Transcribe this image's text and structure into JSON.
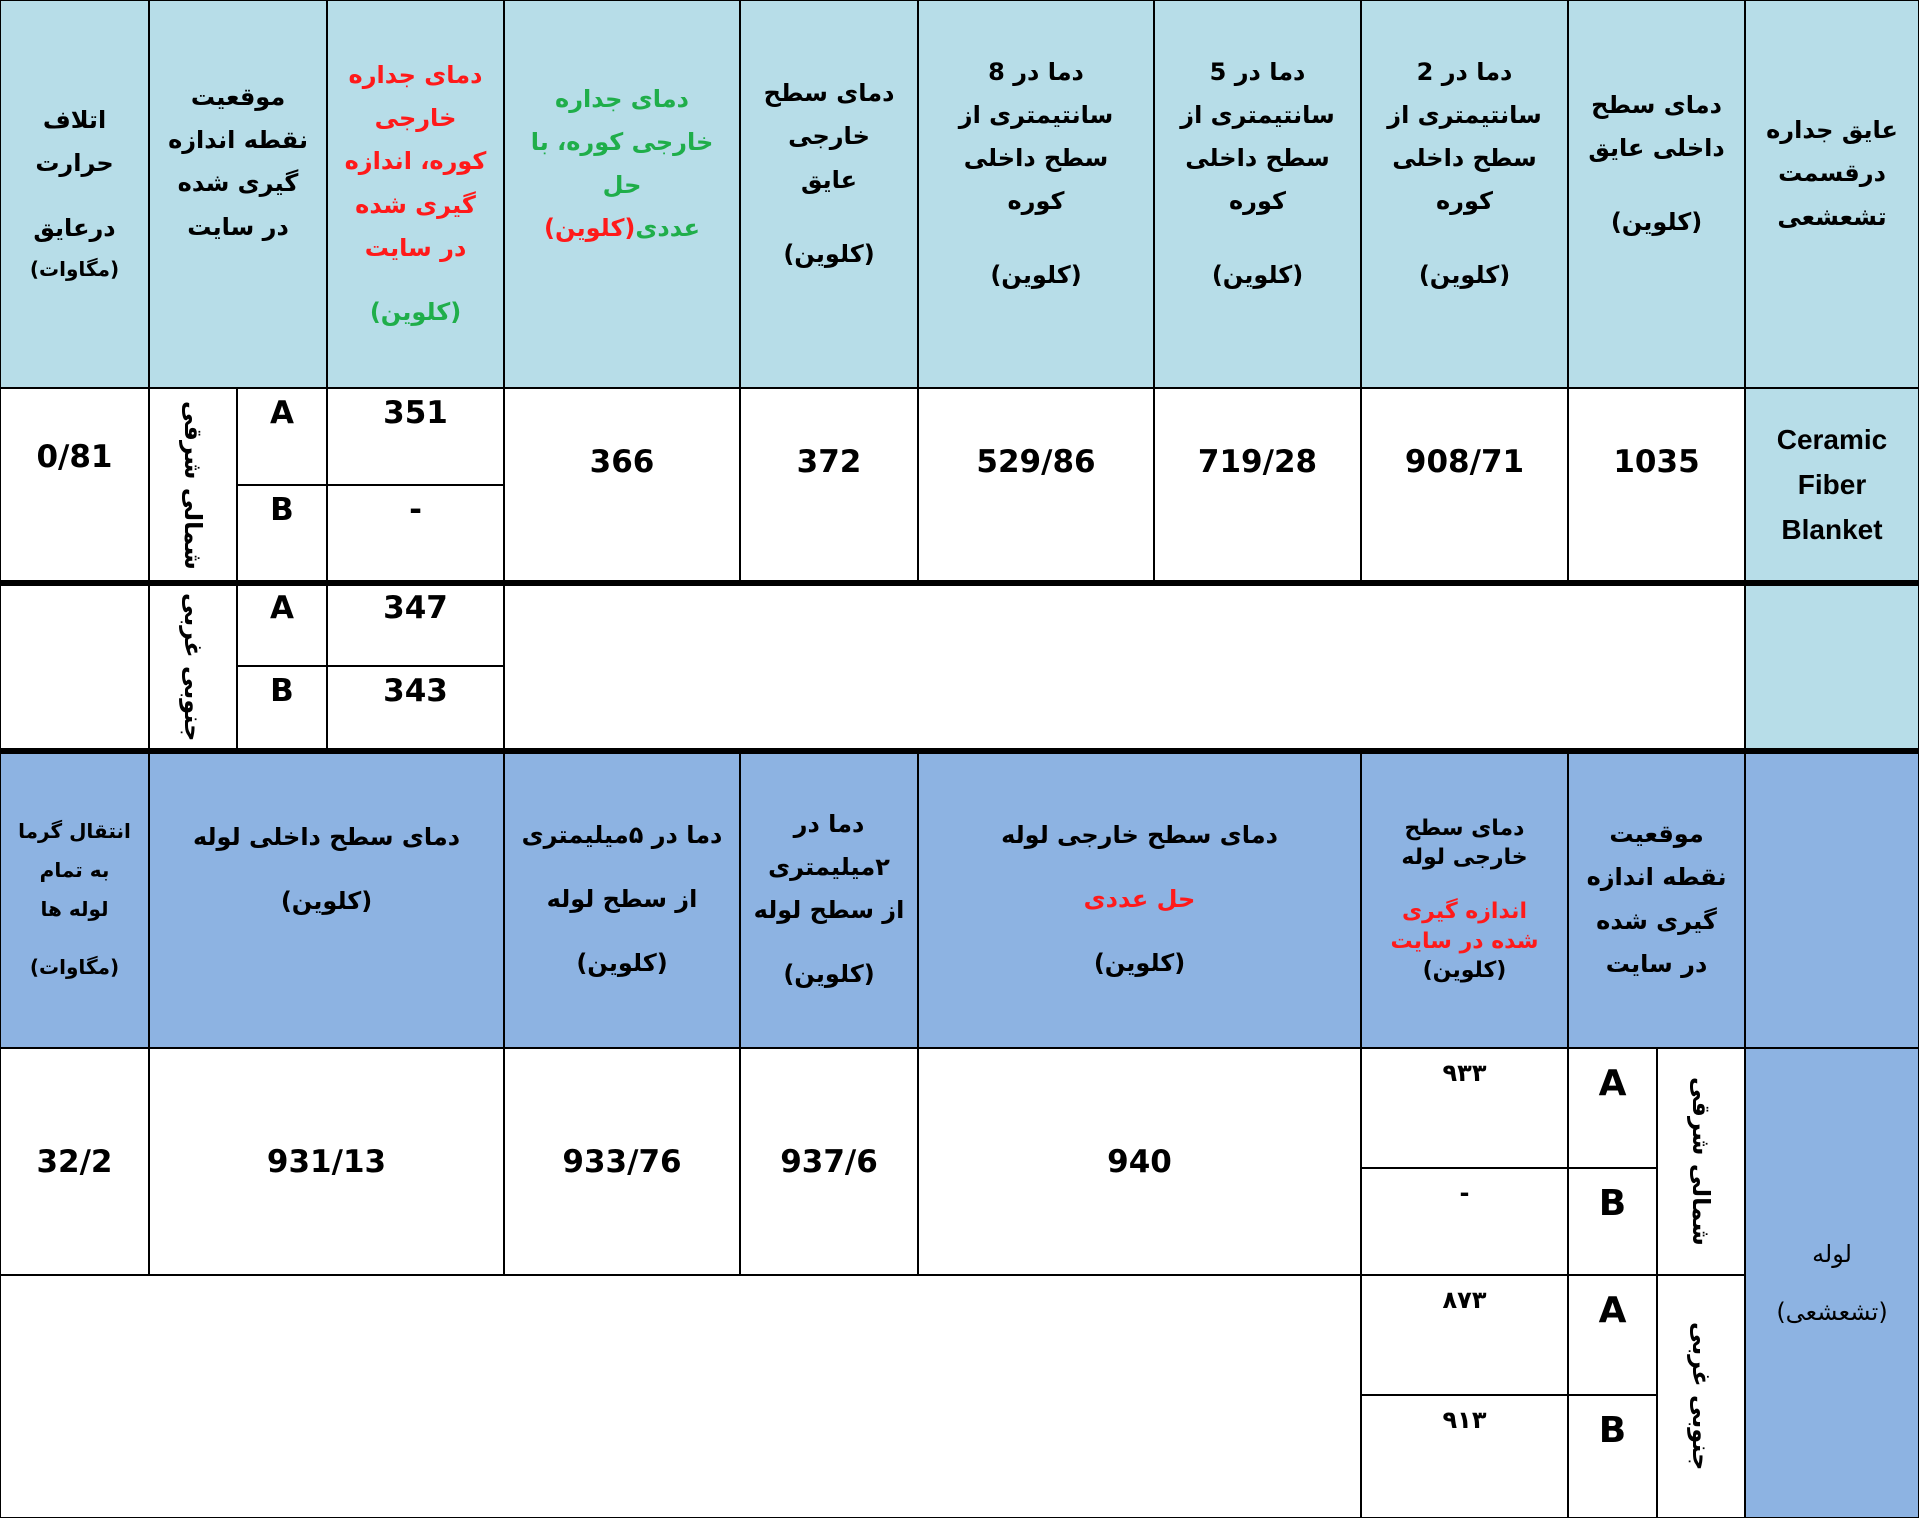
{
  "top_header": {
    "heat_loss": [
      "اتلاف",
      "حرارت",
      "درعایق",
      "(مگاوات)"
    ],
    "location": [
      "موقعیت",
      "نقطه اندازه",
      "گیری شده",
      "در سایت"
    ],
    "measured_wall": {
      "red": [
        "دمای جداره",
        "خارجی",
        "کوره، اندازه",
        "گیری شده",
        "در سایت"
      ],
      "green": "(کلوین)"
    },
    "numerical_wall": {
      "green": [
        "دمای جداره",
        "خارجی کوره، با",
        "حل"
      ],
      "green_tail": "عددی",
      "red_tail": "(کلوین)"
    },
    "outer_surface": [
      "دمای سطح",
      "خارجی",
      "عایق",
      "(کلوین)"
    ],
    "at_8cm": [
      "دما در  8",
      "سانتیمتری از",
      "سطح داخلی",
      "کوره",
      "(کلوین)"
    ],
    "at_5cm": [
      "دما در  5",
      "سانتیمتری از",
      "سطح داخلی",
      "کوره",
      "(کلوین)"
    ],
    "at_2cm": [
      "دما در  2",
      "سانتیمتری از",
      "سطح داخلی",
      "کوره",
      "(کلوین)"
    ],
    "inner_surface": [
      "دمای سطح",
      "داخلی عایق",
      "(کلوین)"
    ],
    "insulation": [
      "عایق جداره",
      "درقسمت",
      "تشعشعی"
    ]
  },
  "insulation_rows": {
    "material": [
      "Ceramic",
      "Fiber",
      "Blanket"
    ],
    "heat_loss": "0/81",
    "northeast": {
      "label": "شمالی شرقی",
      "A": "A",
      "B": "B",
      "A_value": "351",
      "B_value": "-"
    },
    "southwest": {
      "label": "جنوبی غربی",
      "A": "A",
      "B": "B",
      "A_value": "347",
      "B_value": "343"
    },
    "numerical_wall": "366",
    "outer_surface": "372",
    "at_8cm": "529/86",
    "at_5cm": "719/28",
    "at_2cm": "908/71",
    "inner_surface": "1035"
  },
  "pipe_header": {
    "heat_transfer": [
      "انتقال گرما",
      "به تمام",
      "لوله ها",
      "(مگاوات)"
    ],
    "inner_surface": [
      "دمای سطح داخلی لوله",
      "(کلوین)"
    ],
    "at_5mm": [
      "دما در ۵میلیمتری",
      "از سطح لوله",
      "(کلوین)"
    ],
    "at_2mm": [
      "دما در",
      "۲میلیمتری",
      "از سطح لوله",
      "(کلوین)"
    ],
    "outer_numerical": {
      "black": "دمای سطح خارجی  لوله",
      "red": "حل عددی",
      "unit": "(کلوین)"
    },
    "outer_measured": {
      "black": [
        "دمای سطح",
        "خارجی  لوله"
      ],
      "red": [
        "اندازه گیری",
        "شده در سایت"
      ],
      "unit": "(کلوین)"
    },
    "location": [
      "موقعیت",
      "نقطه اندازه",
      "گیری شده",
      "در سایت"
    ]
  },
  "pipe_rows": {
    "label": [
      "لوله",
      "(تشعشعی)"
    ],
    "heat_transfer": "32/2",
    "inner_surface": "931/13",
    "at_5mm": "933/76",
    "at_2mm": "937/6",
    "outer_numerical": "940",
    "northeast": {
      "label": "شمالی شرقی",
      "A": "A",
      "B": "B",
      "A_value": "۹۳۳",
      "B_value": "-"
    },
    "southwest": {
      "label": "جنوبی غربی",
      "A": "A",
      "B": "B",
      "A_value": "۸۷۳",
      "B_value": "۹۱۳"
    }
  },
  "colors": {
    "header_light": "#b7dde8",
    "header_pipe": "#8db3e2",
    "red": "#ff1a1a",
    "green": "#1fae4a"
  }
}
